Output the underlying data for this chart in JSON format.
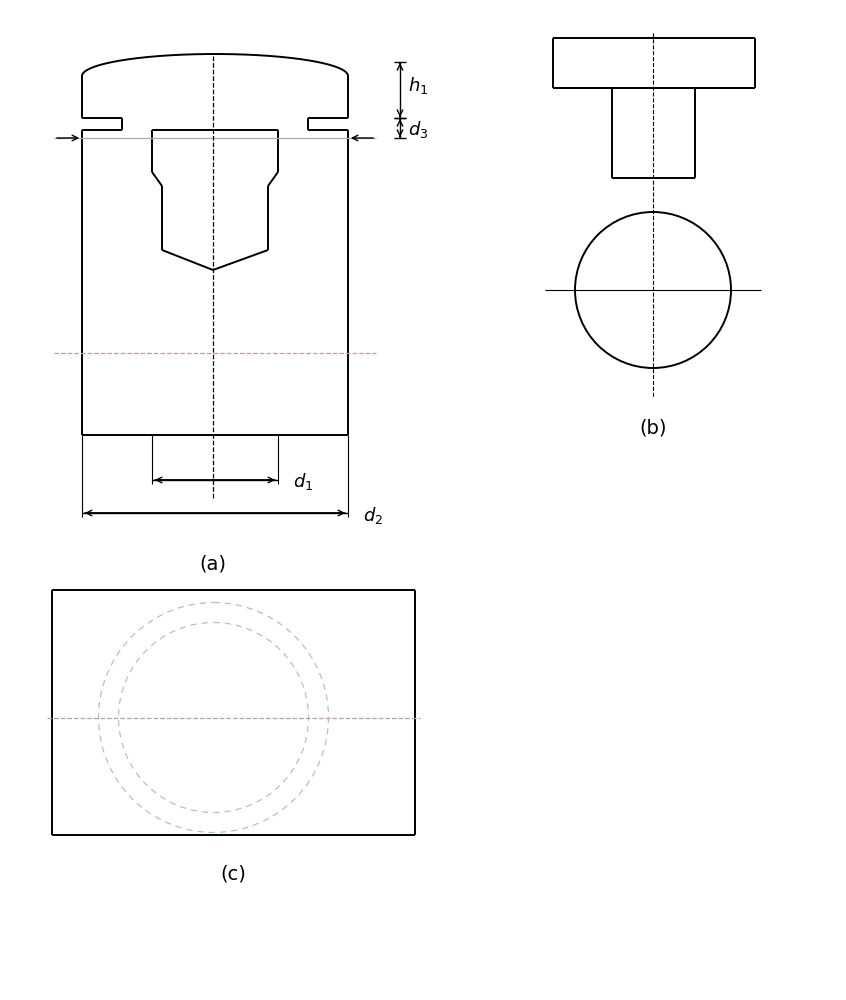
{
  "bg_color": "#ffffff",
  "lc": "#000000",
  "gray": "#999999",
  "green_dash": "#aaddaa",
  "purple_dash": "#bb88bb",
  "label_a": "(a)",
  "label_b": "(b)",
  "label_c": "(c)",
  "lw_main": 1.4,
  "lw_thin": 0.8,
  "lw_dim": 1.0,
  "font_size_label": 14,
  "font_size_dim": 13
}
